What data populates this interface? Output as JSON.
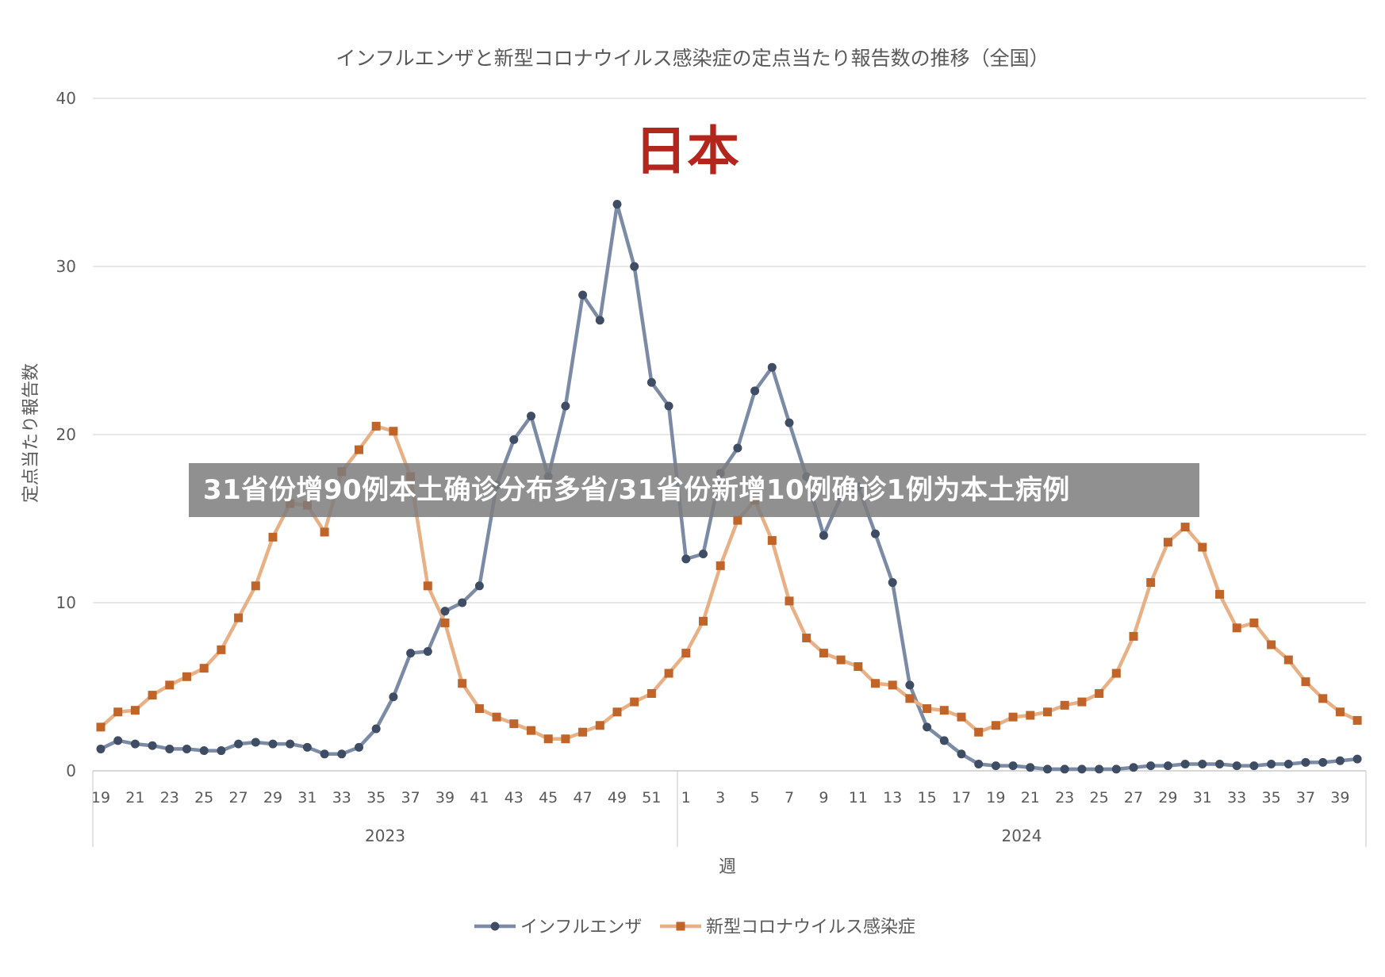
{
  "chart_data": {
    "type": "line",
    "title": "インフルエンザと新型コロナウイルス感染症の定点当たり報告数の推移（全国）",
    "subtitle": "日本",
    "xlabel": "週",
    "ylabel": "定点当たり報告数",
    "ylim": [
      0,
      40
    ],
    "yticks": [
      "0",
      "10",
      "20",
      "30",
      "40"
    ],
    "grid": true,
    "legend_position": "bottom",
    "year_groups": [
      {
        "label": "2023",
        "weeks": [
          19,
          52
        ]
      },
      {
        "label": "2024",
        "weeks": [
          1,
          40
        ]
      }
    ],
    "x_tick_labels": [
      "19",
      "21",
      "23",
      "25",
      "27",
      "29",
      "31",
      "33",
      "35",
      "37",
      "39",
      "41",
      "43",
      "45",
      "47",
      "49",
      "51",
      "1",
      "3",
      "5",
      "7",
      "9",
      "11",
      "13",
      "15",
      "17",
      "19",
      "21",
      "23",
      "25",
      "27",
      "29",
      "31",
      "33",
      "35",
      "37",
      "39"
    ],
    "categories": [
      "2023-19",
      "2023-20",
      "2023-21",
      "2023-22",
      "2023-23",
      "2023-24",
      "2023-25",
      "2023-26",
      "2023-27",
      "2023-28",
      "2023-29",
      "2023-30",
      "2023-31",
      "2023-32",
      "2023-33",
      "2023-34",
      "2023-35",
      "2023-36",
      "2023-37",
      "2023-38",
      "2023-39",
      "2023-40",
      "2023-41",
      "2023-42",
      "2023-43",
      "2023-44",
      "2023-45",
      "2023-46",
      "2023-47",
      "2023-48",
      "2023-49",
      "2023-50",
      "2023-51",
      "2023-52",
      "2024-1",
      "2024-2",
      "2024-3",
      "2024-4",
      "2024-5",
      "2024-6",
      "2024-7",
      "2024-8",
      "2024-9",
      "2024-10",
      "2024-11",
      "2024-12",
      "2024-13",
      "2024-14",
      "2024-15",
      "2024-16",
      "2024-17",
      "2024-18",
      "2024-19",
      "2024-20",
      "2024-21",
      "2024-22",
      "2024-23",
      "2024-24",
      "2024-25",
      "2024-26",
      "2024-27",
      "2024-28",
      "2024-29",
      "2024-30",
      "2024-31",
      "2024-32",
      "2024-33",
      "2024-34",
      "2024-35",
      "2024-36",
      "2024-37",
      "2024-38",
      "2024-39",
      "2024-40"
    ],
    "series": [
      {
        "name": "インフルエンザ",
        "color": "#7b8ba6",
        "marker_color": "#3f4d64",
        "marker": "circle",
        "values": [
          1.3,
          1.8,
          1.6,
          1.5,
          1.3,
          1.3,
          1.2,
          1.2,
          1.6,
          1.7,
          1.6,
          1.6,
          1.4,
          1.0,
          1.0,
          1.4,
          2.5,
          4.4,
          7.0,
          7.1,
          9.5,
          10.0,
          11.0,
          17.0,
          19.7,
          21.1,
          17.5,
          21.7,
          28.3,
          26.8,
          33.7,
          30.0,
          23.1,
          21.7,
          12.6,
          12.9,
          17.7,
          19.2,
          22.6,
          24.0,
          20.7,
          17.5,
          14.0,
          16.3,
          16.9,
          14.1,
          11.2,
          5.1,
          2.6,
          1.8,
          1.0,
          0.4,
          0.3,
          0.3,
          0.2,
          0.1,
          0.1,
          0.1,
          0.1,
          0.1,
          0.2,
          0.3,
          0.3,
          0.4,
          0.4,
          0.4,
          0.3,
          0.3,
          0.4,
          0.4,
          0.5,
          0.5,
          0.6,
          0.7
        ]
      },
      {
        "name": "新型コロナウイルス感染症",
        "color": "#e8b085",
        "marker_color": "#c0642a",
        "marker": "square",
        "values": [
          2.6,
          3.5,
          3.6,
          4.5,
          5.1,
          5.6,
          6.1,
          7.2,
          9.1,
          11.0,
          13.9,
          15.9,
          15.8,
          14.2,
          17.8,
          19.1,
          20.5,
          20.2,
          17.5,
          11.0,
          8.8,
          5.2,
          3.7,
          3.2,
          2.8,
          2.4,
          1.9,
          1.9,
          2.3,
          2.7,
          3.5,
          4.1,
          4.6,
          5.8,
          7.0,
          8.9,
          12.2,
          14.9,
          16.1,
          13.7,
          10.1,
          7.9,
          7.0,
          6.6,
          6.2,
          5.2,
          5.1,
          4.3,
          3.7,
          3.6,
          3.2,
          2.3,
          2.7,
          3.2,
          3.3,
          3.5,
          3.9,
          4.1,
          4.6,
          5.8,
          8.0,
          11.2,
          13.6,
          14.5,
          13.3,
          10.5,
          8.5,
          8.8,
          7.5,
          6.6,
          5.3,
          4.3,
          3.5,
          3.0
        ]
      }
    ]
  },
  "banner": {
    "text": "31省份增90例本土确诊分布多省/31省份新增10例确诊1例为本土病例"
  }
}
